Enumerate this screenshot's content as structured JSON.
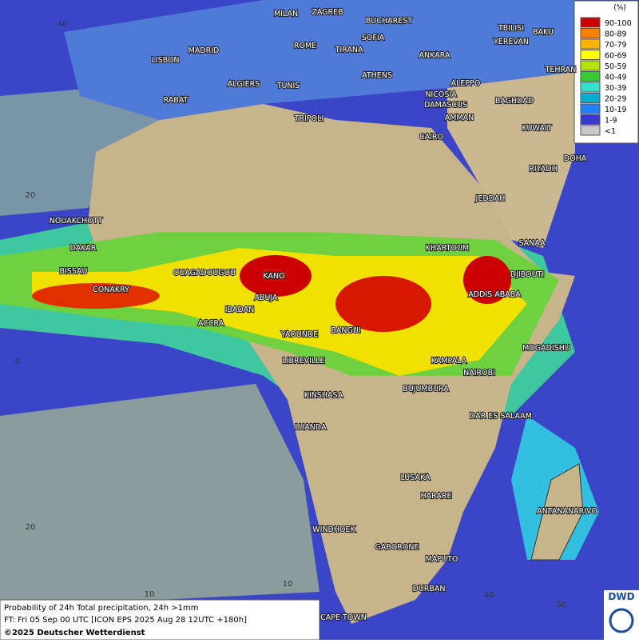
{
  "legend": {
    "unit": "(%)",
    "classes": [
      {
        "label": "90-100",
        "color": "#cc0000"
      },
      {
        "label": "80-89",
        "color": "#ff7f00"
      },
      {
        "label": "70-79",
        "color": "#ffb300"
      },
      {
        "label": "60-69",
        "color": "#ffff00"
      },
      {
        "label": "50-59",
        "color": "#b4e400"
      },
      {
        "label": "40-49",
        "color": "#33cc33"
      },
      {
        "label": "30-39",
        "color": "#33e0c8"
      },
      {
        "label": "20-29",
        "color": "#00b0d0"
      },
      {
        "label": "10-19",
        "color": "#2080ff"
      },
      {
        "label": "1-9",
        "color": "#3a3acc"
      },
      {
        "label": "<1",
        "color": "#c8c8c8"
      }
    ]
  },
  "cities": [
    "MILAN",
    "ZAGREB",
    "BUCHAREST",
    "TBILISI",
    "BAKU",
    "MADRID",
    "ROME",
    "SOFIA",
    "TIRANA",
    "ANKARA",
    "YEREVAN",
    "LISBON",
    "TEHRAN",
    "ATHENS",
    "ALGIERS",
    "TUNIS",
    "ALEPPO",
    "RABAT",
    "NICOSIA",
    "BAGHDAD",
    "DAMASCUS",
    "TRIPOLI",
    "AMMAN",
    "KUWAIT",
    "CAIRO",
    "DOHA",
    "RIYADH",
    "JEDDAH",
    "NOUAKCHOTT",
    "SANAA",
    "DAKAR",
    "KHARTOUM",
    "BISSAU",
    "OUAGADOUGOU",
    "DJIBOUTI",
    "KANO",
    "CONAKRY",
    "ABUJA",
    "ADDIS ABABA",
    "IBADAN",
    "ACCRA",
    "YAOUNDE",
    "BANGUI",
    "MOGADISHU",
    "LIBREVILLE",
    "KAMPALA",
    "NAIROBI",
    "BUJUMBURA",
    "KINSHASA",
    "DAR ES SALAAM",
    "LUANDA",
    "LUSAKA",
    "HARARE",
    "ANTANANARIVO",
    "WINDHOEK",
    "GABORONE",
    "MAPUTO",
    "DURBAN",
    "CAPE TOWN"
  ],
  "grid_labels": [
    "40",
    "20",
    "0",
    "20",
    "10",
    "10",
    "40",
    "50"
  ],
  "caption": {
    "title": "Probability of 24h Total precipitation, 24h >1mm",
    "forecast": "FT: Fri 05 Sep 00 UTC [ICON EPS 2025 Aug 28 12UTC +180h]",
    "copyright": "©2025 Deutscher Wetterdienst"
  },
  "logo": "DWD"
}
